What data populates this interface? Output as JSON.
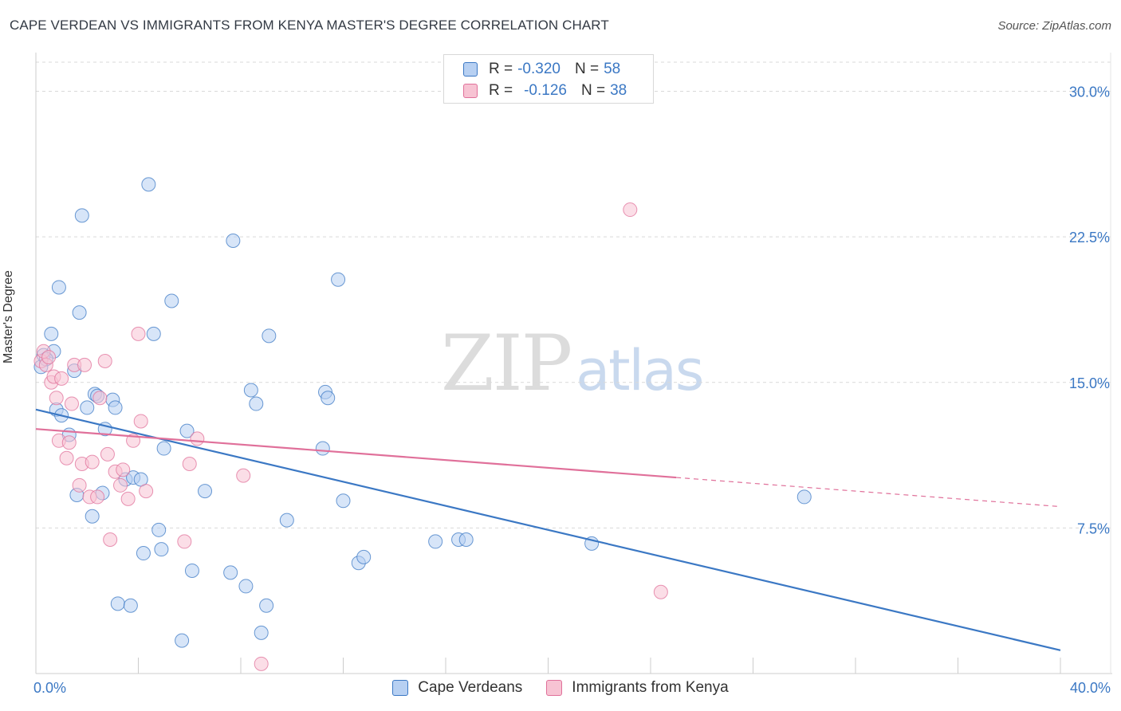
{
  "title": "CAPE VERDEAN VS IMMIGRANTS FROM KENYA MASTER'S DEGREE CORRELATION CHART",
  "source": "Source: ZipAtlas.com",
  "watermark": {
    "zip": "ZIP",
    "atlas": "atlas"
  },
  "colors": {
    "blue": "#3b78c4",
    "blue_fill": "#b7d0f2",
    "pink": "#e0709a",
    "pink_fill": "#f7c3d3",
    "grid": "#d9d9d9"
  },
  "legend": {
    "rows": [
      {
        "r_label": "R =",
        "r_value": "-0.320",
        "n_label": "N =",
        "n_value": "58"
      },
      {
        "r_label": "R =",
        "r_value": "-0.126",
        "n_label": "N =",
        "n_value": "38"
      }
    ]
  },
  "chart_data": {
    "type": "scatter",
    "ylabel": "Master's Degree",
    "xlim": [
      0,
      40
    ],
    "ylim": [
      0,
      31.5
    ],
    "x_tick_labels": [
      "0.0%",
      "40.0%"
    ],
    "y_ticks": [
      7.5,
      15.0,
      22.5,
      30.0
    ],
    "y_tick_labels": [
      "7.5%",
      "15.0%",
      "22.5%",
      "30.0%"
    ],
    "grid": true,
    "legend_position": "top-center",
    "series": [
      {
        "name": "Cape Verdeans",
        "color": "#3b78c4",
        "trend": {
          "x": [
            0,
            40
          ],
          "y": [
            13.6,
            1.2
          ],
          "style": "solid"
        },
        "points": [
          [
            0.3,
            16.4
          ],
          [
            0.6,
            17.5
          ],
          [
            0.7,
            16.6
          ],
          [
            0.8,
            13.6
          ],
          [
            0.9,
            19.9
          ],
          [
            1.0,
            13.3
          ],
          [
            1.3,
            12.3
          ],
          [
            1.5,
            15.6
          ],
          [
            1.6,
            9.2
          ],
          [
            1.7,
            18.6
          ],
          [
            1.8,
            23.6
          ],
          [
            2.0,
            13.7
          ],
          [
            2.2,
            8.1
          ],
          [
            2.3,
            14.4
          ],
          [
            2.4,
            14.3
          ],
          [
            2.6,
            9.3
          ],
          [
            2.7,
            12.6
          ],
          [
            3.0,
            14.1
          ],
          [
            3.1,
            13.7
          ],
          [
            3.2,
            3.6
          ],
          [
            3.5,
            10.0
          ],
          [
            3.7,
            3.5
          ],
          [
            3.8,
            10.1
          ],
          [
            4.1,
            10.0
          ],
          [
            4.2,
            6.2
          ],
          [
            4.4,
            25.2
          ],
          [
            4.6,
            17.5
          ],
          [
            4.8,
            7.4
          ],
          [
            4.9,
            6.4
          ],
          [
            5.0,
            11.6
          ],
          [
            5.3,
            19.2
          ],
          [
            5.7,
            1.7
          ],
          [
            5.9,
            12.5
          ],
          [
            6.1,
            5.3
          ],
          [
            6.6,
            9.4
          ],
          [
            7.6,
            5.2
          ],
          [
            7.7,
            22.3
          ],
          [
            8.2,
            4.5
          ],
          [
            8.4,
            14.6
          ],
          [
            8.6,
            13.9
          ],
          [
            8.8,
            2.1
          ],
          [
            9.0,
            3.5
          ],
          [
            9.1,
            17.4
          ],
          [
            9.8,
            7.9
          ],
          [
            11.2,
            11.6
          ],
          [
            11.3,
            14.5
          ],
          [
            11.4,
            14.2
          ],
          [
            11.8,
            20.3
          ],
          [
            12.0,
            8.9
          ],
          [
            12.6,
            5.7
          ],
          [
            12.8,
            6.0
          ],
          [
            15.6,
            6.8
          ],
          [
            16.5,
            6.9
          ],
          [
            16.8,
            6.9
          ],
          [
            21.7,
            6.7
          ],
          [
            30.0,
            9.1
          ],
          [
            0.2,
            15.8
          ],
          [
            0.4,
            16.2
          ]
        ]
      },
      {
        "name": "Immigrants from Kenya",
        "color": "#e0709a",
        "trend": {
          "x": [
            0,
            25
          ],
          "y": [
            12.6,
            10.1
          ],
          "style": "solid",
          "dashed_to": [
            40,
            8.6
          ]
        },
        "points": [
          [
            0.2,
            16.1
          ],
          [
            0.3,
            16.6
          ],
          [
            0.4,
            15.9
          ],
          [
            0.5,
            16.3
          ],
          [
            0.6,
            15.0
          ],
          [
            0.7,
            15.3
          ],
          [
            0.8,
            14.2
          ],
          [
            0.9,
            12.0
          ],
          [
            1.0,
            15.2
          ],
          [
            1.2,
            11.1
          ],
          [
            1.3,
            11.9
          ],
          [
            1.4,
            13.9
          ],
          [
            1.5,
            15.9
          ],
          [
            1.7,
            9.7
          ],
          [
            1.8,
            10.8
          ],
          [
            1.9,
            15.9
          ],
          [
            2.1,
            9.1
          ],
          [
            2.2,
            10.9
          ],
          [
            2.4,
            9.1
          ],
          [
            2.5,
            14.2
          ],
          [
            2.7,
            16.1
          ],
          [
            2.8,
            11.3
          ],
          [
            2.9,
            6.9
          ],
          [
            3.1,
            10.4
          ],
          [
            3.3,
            9.7
          ],
          [
            3.4,
            10.5
          ],
          [
            3.6,
            9.0
          ],
          [
            3.8,
            12.0
          ],
          [
            4.0,
            17.5
          ],
          [
            4.1,
            13.0
          ],
          [
            4.3,
            9.4
          ],
          [
            5.8,
            6.8
          ],
          [
            6.0,
            10.8
          ],
          [
            6.3,
            12.1
          ],
          [
            8.1,
            10.2
          ],
          [
            8.8,
            0.5
          ],
          [
            23.2,
            23.9
          ],
          [
            24.4,
            4.2
          ]
        ]
      }
    ]
  }
}
